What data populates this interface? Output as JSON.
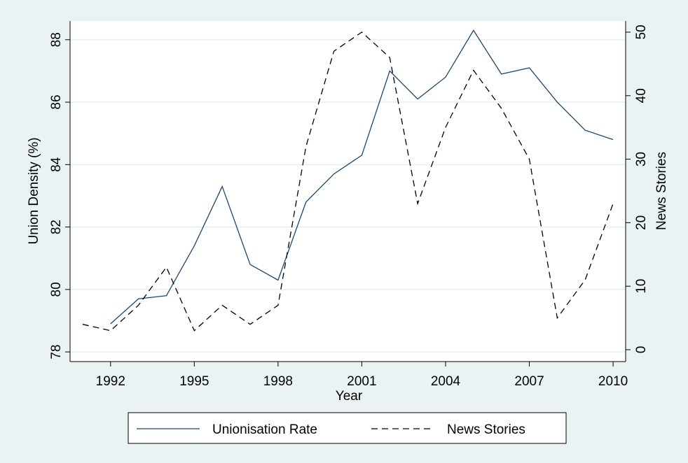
{
  "chart_data": {
    "type": "line",
    "x_label": "Year",
    "y_label": "Union Density (%)",
    "y2_label": "News Stories",
    "x": [
      1991,
      1992,
      1993,
      1994,
      1995,
      1996,
      1997,
      1998,
      1999,
      2000,
      2001,
      2002,
      2003,
      2004,
      2005,
      2006,
      2007,
      2008,
      2009,
      2010
    ],
    "series": [
      {
        "name": "Unionisation Rate",
        "color": "#1a476f",
        "dash": "solid",
        "values": [
          null,
          78.9,
          79.7,
          79.8,
          81.4,
          83.3,
          80.8,
          80.3,
          82.8,
          83.7,
          84.3,
          87.0,
          86.1,
          86.8,
          88.3,
          86.9,
          87.1,
          86.0,
          85.1,
          84.8
        ]
      },
      {
        "name": "News Stories",
        "color": "#000000",
        "dash": "dashed",
        "axis": "y2",
        "values": [
          4,
          3,
          7,
          13,
          3,
          7,
          4,
          7,
          32,
          47,
          50,
          46,
          23,
          35,
          44,
          38,
          30,
          5,
          11,
          23
        ]
      }
    ],
    "xlim": [
      1990.55,
      2010.45
    ],
    "xticks": [
      1992,
      1995,
      1998,
      2001,
      2004,
      2007,
      2010
    ],
    "ylim": [
      77.69,
      88.6
    ],
    "yticks": [
      78,
      80,
      82,
      84,
      86,
      88
    ],
    "y2lim": [
      -1.87,
      51.76
    ],
    "y2ticks": [
      0,
      10,
      20,
      30,
      40,
      50
    ],
    "grid": true,
    "legend": "bottom"
  }
}
